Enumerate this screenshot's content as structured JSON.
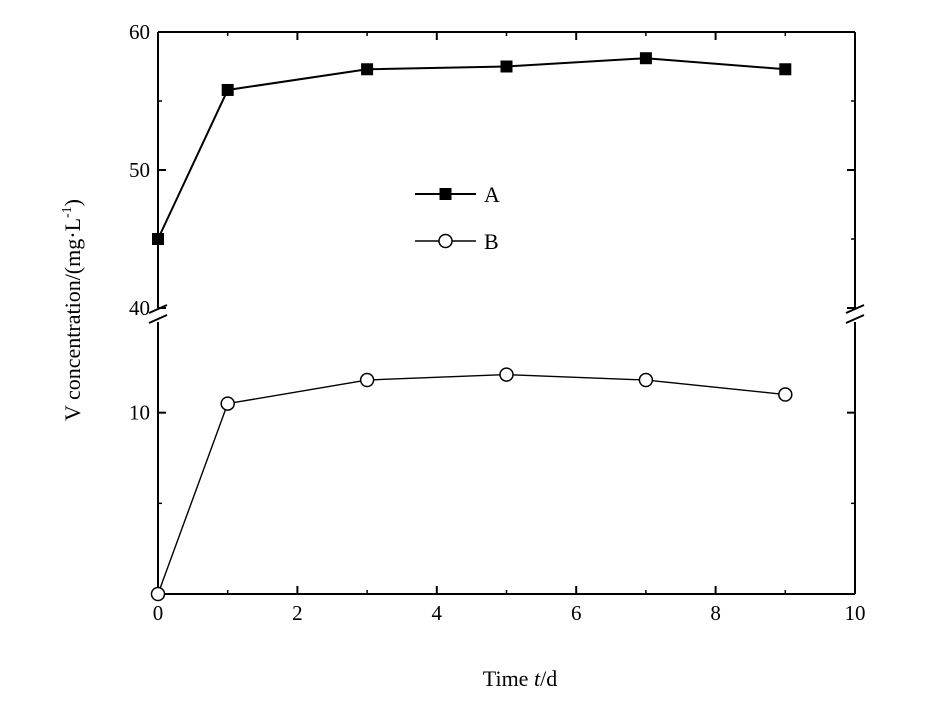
{
  "chart_data": {
    "type": "line",
    "xlabel": "Time t/d",
    "ylabel": "V concentration/(mg·L-1)",
    "xlim": [
      0,
      10
    ],
    "xticks": [
      "0",
      "2",
      "4",
      "6",
      "8",
      "10"
    ],
    "y_axis_break": true,
    "ylim_upper": [
      40,
      60
    ],
    "yticks_upper": [
      "40",
      "50",
      "60"
    ],
    "ylim_lower": [
      0,
      15
    ],
    "yticks_lower": [
      "10"
    ],
    "legend_position": "center",
    "series": [
      {
        "name": "A",
        "marker": "filled-square",
        "x": [
          0,
          1,
          3,
          5,
          7,
          9
        ],
        "y": [
          45.0,
          55.8,
          57.3,
          57.5,
          58.1,
          57.3
        ]
      },
      {
        "name": "B",
        "marker": "open-circle",
        "x": [
          0,
          1,
          3,
          5,
          7,
          9
        ],
        "y": [
          0.0,
          10.5,
          11.8,
          12.1,
          11.8,
          11.0
        ]
      }
    ]
  }
}
